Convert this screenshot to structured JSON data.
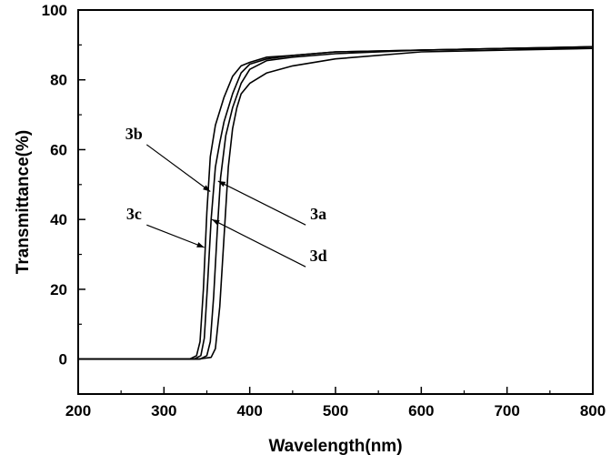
{
  "chart_data": {
    "type": "line",
    "title": "",
    "xlabel": "Wavelength(nm)",
    "ylabel": "Transmittance(%)",
    "xlim": [
      200,
      800
    ],
    "ylim": [
      -10,
      100
    ],
    "x_ticks": [
      200,
      300,
      400,
      500,
      600,
      700,
      800
    ],
    "x_tick_labels": [
      "200",
      "300",
      "400",
      "500",
      "600",
      "700",
      "800"
    ],
    "y_ticks": [
      0,
      20,
      40,
      60,
      80,
      100
    ],
    "y_tick_labels": [
      "0",
      "20",
      "40",
      "60",
      "80",
      "100"
    ],
    "grid": false,
    "legend": "none",
    "line_color": "#000000",
    "series": [
      {
        "label": "3a",
        "points": [
          [
            200,
            0
          ],
          [
            300,
            0
          ],
          [
            340,
            0
          ],
          [
            355,
            0.5
          ],
          [
            360,
            3
          ],
          [
            365,
            15
          ],
          [
            370,
            35
          ],
          [
            375,
            55
          ],
          [
            380,
            66
          ],
          [
            385,
            72
          ],
          [
            390,
            76
          ],
          [
            400,
            79
          ],
          [
            420,
            82
          ],
          [
            450,
            84
          ],
          [
            500,
            86
          ],
          [
            600,
            88
          ],
          [
            700,
            88.5
          ],
          [
            800,
            89
          ]
        ]
      },
      {
        "label": "3b",
        "points": [
          [
            200,
            0
          ],
          [
            300,
            0
          ],
          [
            330,
            0
          ],
          [
            338,
            1
          ],
          [
            342,
            5
          ],
          [
            346,
            20
          ],
          [
            350,
            42
          ],
          [
            354,
            58
          ],
          [
            360,
            67
          ],
          [
            370,
            75
          ],
          [
            380,
            81
          ],
          [
            390,
            84
          ],
          [
            400,
            85
          ],
          [
            420,
            86.5
          ],
          [
            450,
            87
          ],
          [
            500,
            88
          ],
          [
            600,
            88.5
          ],
          [
            700,
            89
          ],
          [
            800,
            89.5
          ]
        ]
      },
      {
        "label": "3c",
        "points": [
          [
            200,
            0
          ],
          [
            300,
            0
          ],
          [
            335,
            0
          ],
          [
            343,
            1
          ],
          [
            347,
            6
          ],
          [
            351,
            22
          ],
          [
            355,
            40
          ],
          [
            360,
            55
          ],
          [
            365,
            62
          ],
          [
            370,
            68
          ],
          [
            380,
            76
          ],
          [
            390,
            82
          ],
          [
            400,
            84.5
          ],
          [
            420,
            86
          ],
          [
            450,
            87
          ],
          [
            500,
            88
          ],
          [
            600,
            88.5
          ],
          [
            700,
            89
          ],
          [
            800,
            89
          ]
        ]
      },
      {
        "label": "3d",
        "points": [
          [
            200,
            0
          ],
          [
            300,
            0
          ],
          [
            342,
            0
          ],
          [
            350,
            1
          ],
          [
            354,
            5
          ],
          [
            358,
            18
          ],
          [
            362,
            36
          ],
          [
            366,
            52
          ],
          [
            372,
            64
          ],
          [
            380,
            72
          ],
          [
            390,
            79
          ],
          [
            400,
            83
          ],
          [
            420,
            85.5
          ],
          [
            450,
            86.5
          ],
          [
            500,
            87.5
          ],
          [
            600,
            88.5
          ],
          [
            700,
            89
          ],
          [
            800,
            89.5
          ]
        ]
      }
    ],
    "annotations": [
      {
        "text": "3b",
        "text_at": [
          265,
          63
        ],
        "arrow_to": [
          354,
          48
        ]
      },
      {
        "text": "3a",
        "text_at": [
          480,
          40
        ],
        "arrow_to": [
          363,
          51
        ]
      },
      {
        "text": "3c",
        "text_at": [
          265,
          40
        ],
        "arrow_to": [
          347,
          32
        ]
      },
      {
        "text": "3d",
        "text_at": [
          480,
          28
        ],
        "arrow_to": [
          356,
          40
        ]
      }
    ]
  }
}
